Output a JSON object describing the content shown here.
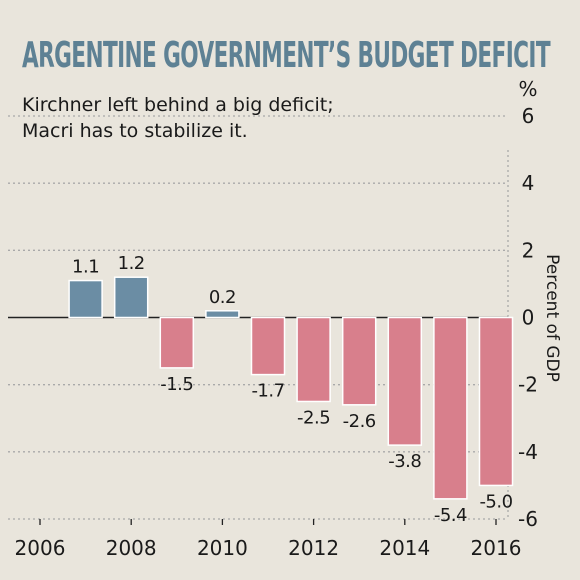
{
  "title": "ARGENTINE GOVERNMENT’S BUDGET DEFICIT",
  "subtitle_lines": [
    "Kirchner left behind a big deficit;",
    "Macri has to stabilize it."
  ],
  "colors": {
    "positive": "#6b8da4",
    "negative": "#d87f8c",
    "title": "#5e8194",
    "background": "#e9e5dc"
  },
  "chart_data": {
    "type": "bar",
    "title": "ARGENTINE GOVERNMENT’S BUDGET DEFICIT",
    "subtitle": "Kirchner left behind a big deficit; Macri has to stabilize it.",
    "x": [
      2006,
      2007,
      2008,
      2009,
      2010,
      2011,
      2012,
      2013,
      2014,
      2015,
      2016
    ],
    "values": [
      0.0,
      1.1,
      1.2,
      -1.5,
      0.2,
      -1.7,
      -2.5,
      -2.6,
      -3.8,
      -5.4,
      -5.0
    ],
    "data_labels": [
      "",
      "1.1",
      "1.2",
      "-1.5",
      "0.2",
      "-1.7",
      "-2.5",
      "-2.6",
      "-3.8",
      "-5.4",
      "-5.0"
    ],
    "xticks": [
      2006,
      2008,
      2010,
      2012,
      2014,
      2016
    ],
    "yticks": [
      6,
      4,
      2,
      0,
      -2,
      -4,
      -6
    ],
    "ylim": [
      -6,
      6
    ],
    "ylabel": "Percent of GDP",
    "yunit": "%",
    "yaxis_position": "right",
    "grid": true
  }
}
